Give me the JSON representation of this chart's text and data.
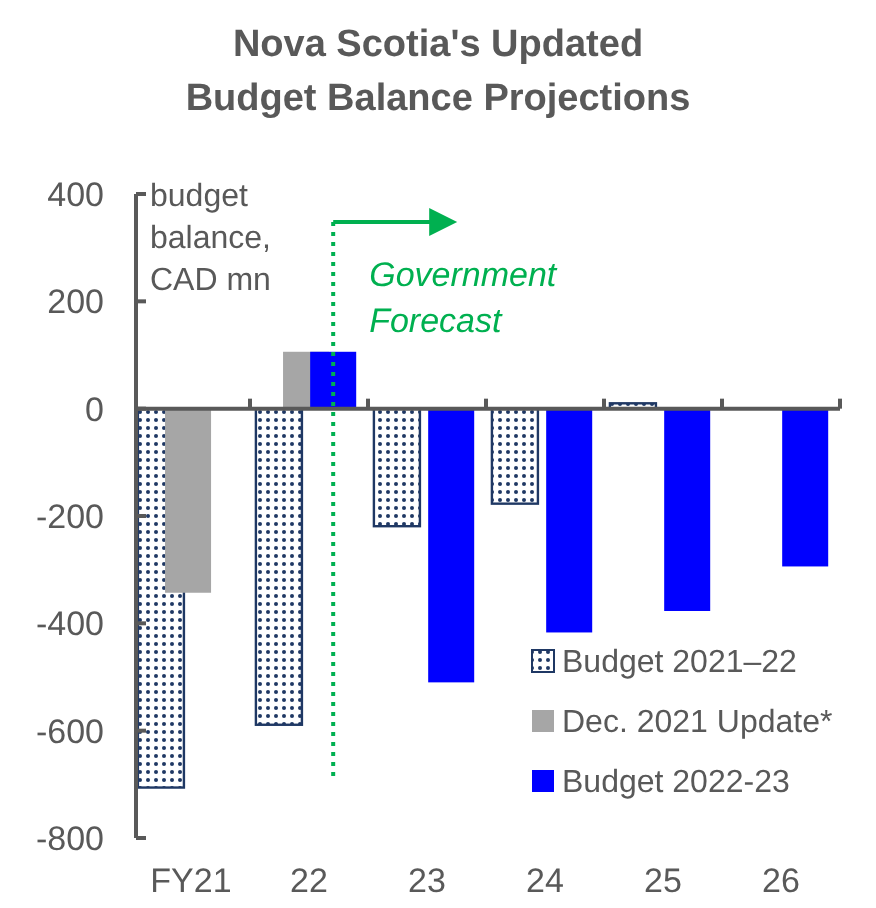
{
  "chart_data": {
    "type": "bar",
    "title": "Nova Scotia's Updated Budget Balance Projections",
    "ylabel": "budget balance, CAD mn",
    "categories": [
      "FY21",
      "22",
      "23",
      "24",
      "25",
      "26"
    ],
    "series": [
      {
        "name": "Budget 2021–22",
        "color": "#1f3864",
        "values": [
          -706,
          -589,
          -219,
          -177,
          10,
          null
        ]
      },
      {
        "name": "Dec. 2021 Update*",
        "color": "#a6a6a6",
        "values": [
          -343,
          106,
          null,
          null,
          null,
          null
        ]
      },
      {
        "name": "Budget 2022-23",
        "color": "#0000ff",
        "values": [
          null,
          106,
          -510,
          -417,
          -377,
          -294
        ]
      }
    ],
    "ylim": [
      -800,
      400
    ],
    "yticks": [
      -800,
      -600,
      -400,
      -200,
      0,
      200,
      400
    ],
    "legend": "bottom right",
    "ref_lines": [
      {
        "axis": "x",
        "value": "22",
        "label": "Government Forecast",
        "color": "#00b050",
        "line_style": "dotted"
      }
    ]
  }
}
